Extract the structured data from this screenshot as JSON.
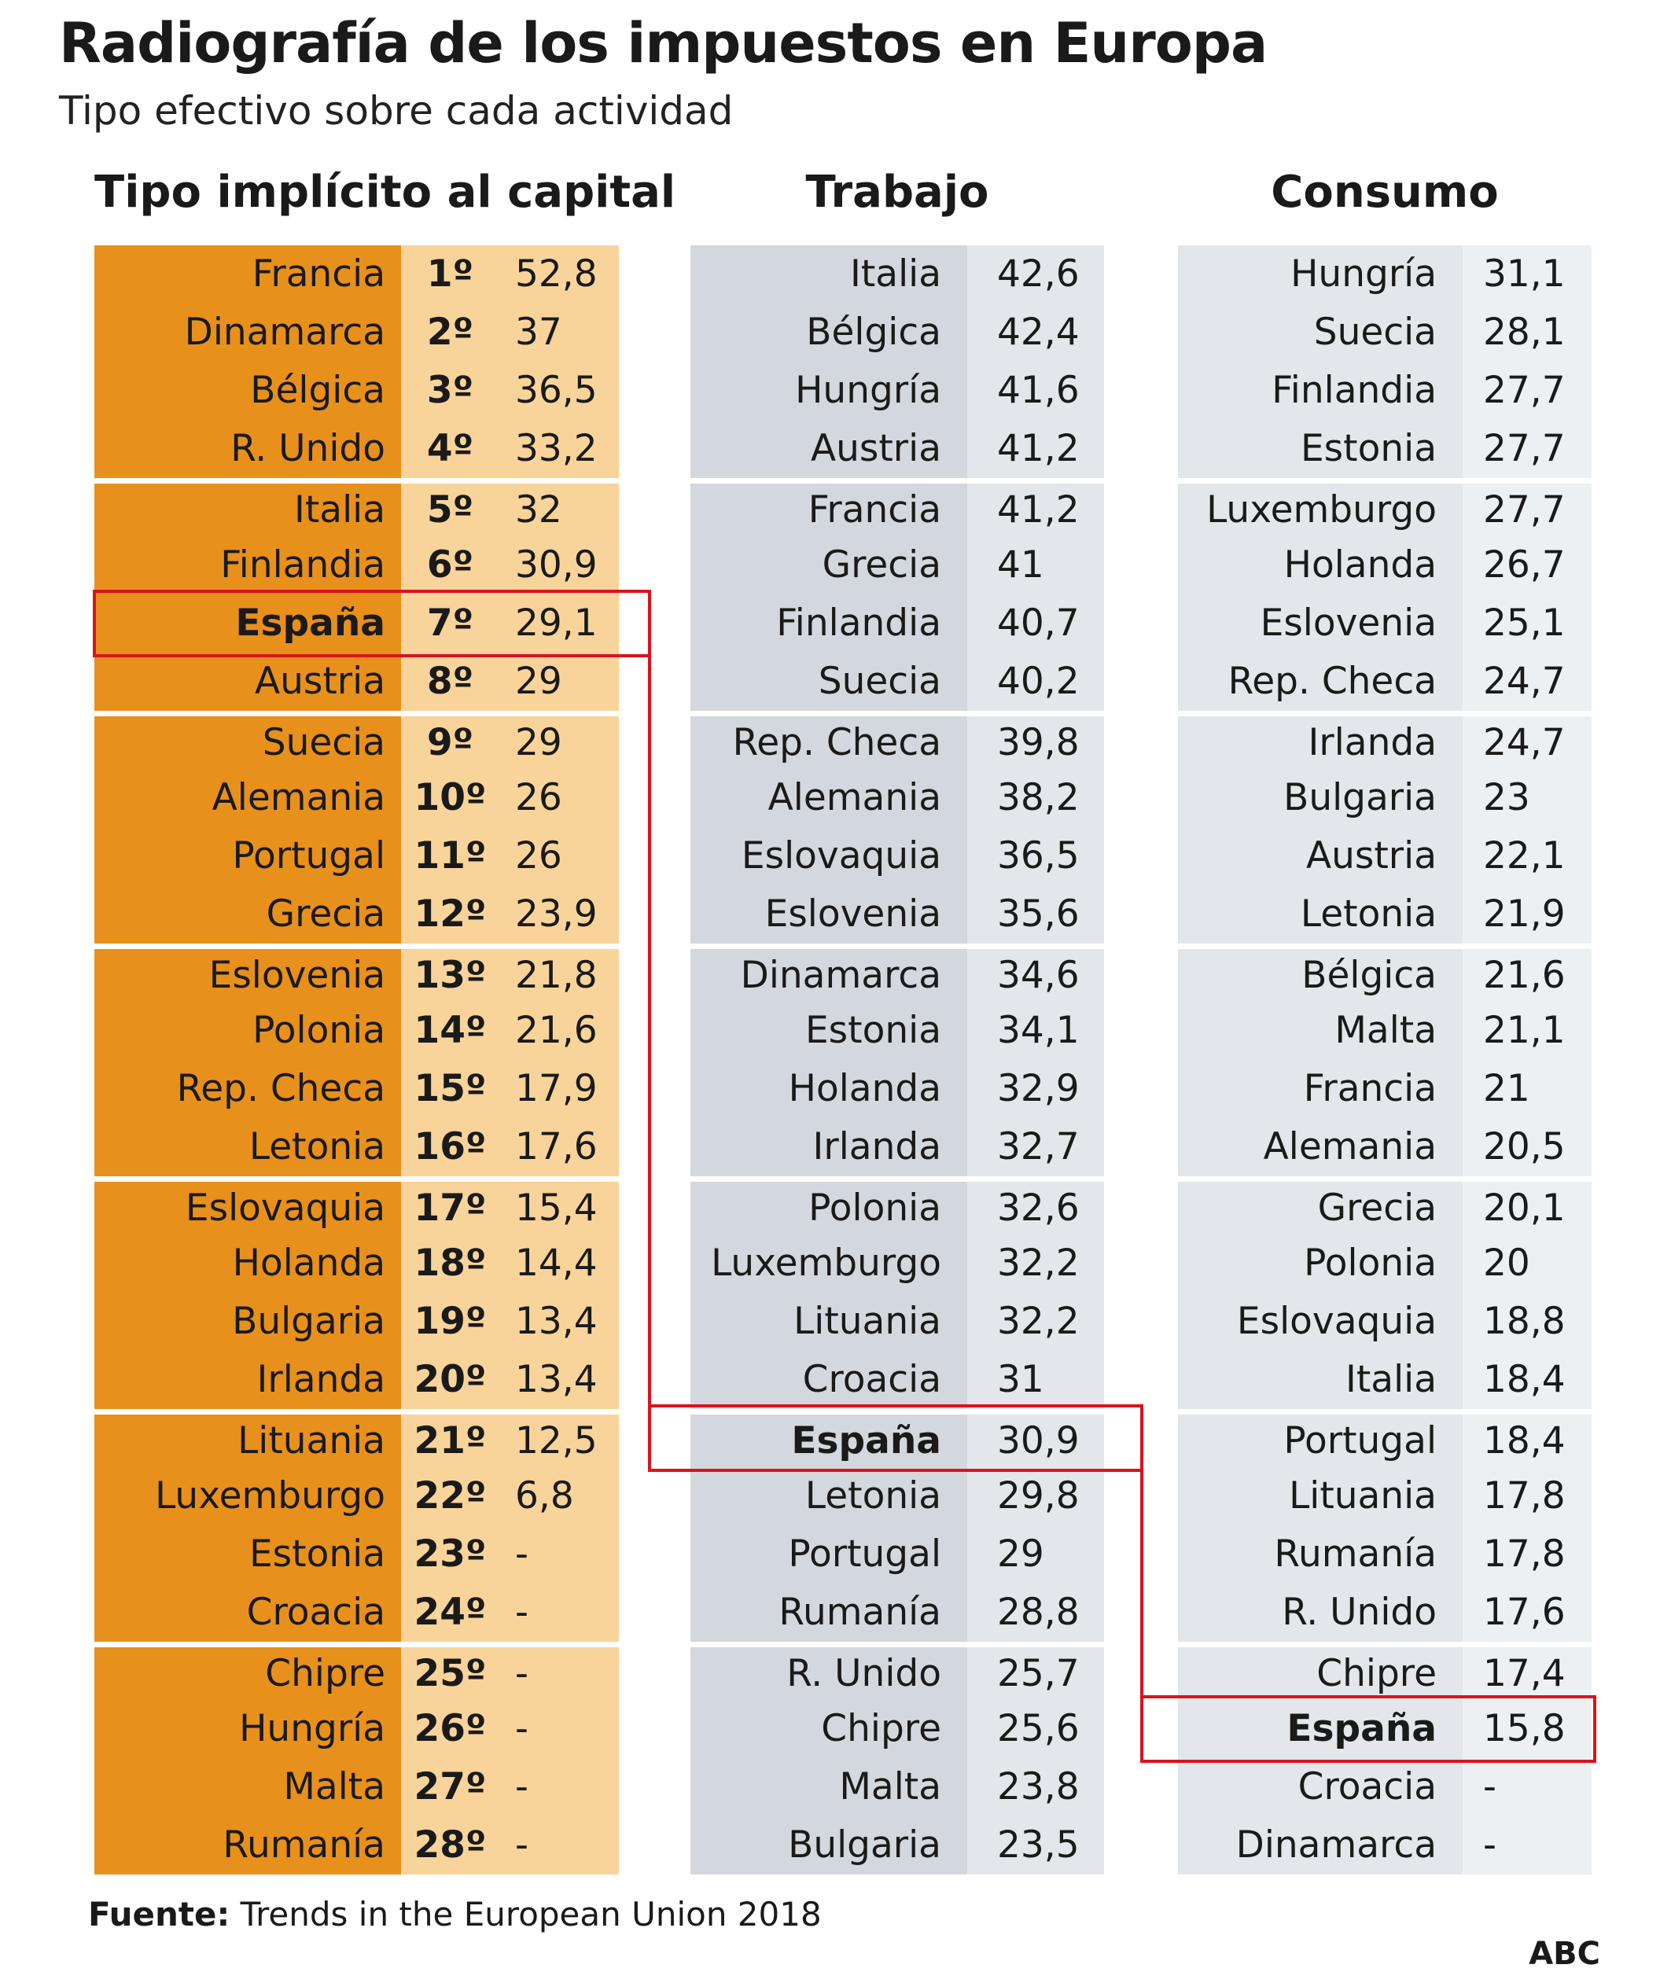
{
  "title": "Radiografía de los impuestos en Europa",
  "subtitle": "Tipo efectivo sobre cada actividad",
  "chart_data": [
    {
      "type": "table",
      "title": "Tipo implícito al capital",
      "highlight": "España",
      "rows": [
        {
          "country": "Francia",
          "rank": "1º",
          "value": "52,8"
        },
        {
          "country": "Dinamarca",
          "rank": "2º",
          "value": "37"
        },
        {
          "country": "Bélgica",
          "rank": "3º",
          "value": "36,5"
        },
        {
          "country": "R. Unido",
          "rank": "4º",
          "value": "33,2"
        },
        {
          "country": "Italia",
          "rank": "5º",
          "value": "32"
        },
        {
          "country": "Finlandia",
          "rank": "6º",
          "value": "30,9"
        },
        {
          "country": "España",
          "rank": "7º",
          "value": "29,1"
        },
        {
          "country": "Austria",
          "rank": "8º",
          "value": "29"
        },
        {
          "country": "Suecia",
          "rank": "9º",
          "value": "29"
        },
        {
          "country": "Alemania",
          "rank": "10º",
          "value": "26"
        },
        {
          "country": "Portugal",
          "rank": "11º",
          "value": "26"
        },
        {
          "country": "Grecia",
          "rank": "12º",
          "value": "23,9"
        },
        {
          "country": "Eslovenia",
          "rank": "13º",
          "value": "21,8"
        },
        {
          "country": "Polonia",
          "rank": "14º",
          "value": "21,6"
        },
        {
          "country": "Rep. Checa",
          "rank": "15º",
          "value": "17,9"
        },
        {
          "country": "Letonia",
          "rank": "16º",
          "value": "17,6"
        },
        {
          "country": "Eslovaquia",
          "rank": "17º",
          "value": "15,4"
        },
        {
          "country": "Holanda",
          "rank": "18º",
          "value": "14,4"
        },
        {
          "country": "Bulgaria",
          "rank": "19º",
          "value": "13,4"
        },
        {
          "country": "Irlanda",
          "rank": "20º",
          "value": "13,4"
        },
        {
          "country": "Lituania",
          "rank": "21º",
          "value": "12,5"
        },
        {
          "country": "Luxemburgo",
          "rank": "22º",
          "value": "6,8"
        },
        {
          "country": "Estonia",
          "rank": "23º",
          "value": "-"
        },
        {
          "country": "Croacia",
          "rank": "24º",
          "value": "-"
        },
        {
          "country": "Chipre",
          "rank": "25º",
          "value": "-"
        },
        {
          "country": "Hungría",
          "rank": "26º",
          "value": "-"
        },
        {
          "country": "Malta",
          "rank": "27º",
          "value": "-"
        },
        {
          "country": "Rumanía",
          "rank": "28º",
          "value": "-"
        }
      ]
    },
    {
      "type": "table",
      "title": "Trabajo",
      "highlight": "España",
      "rows": [
        {
          "country": "Italia",
          "value": "42,6"
        },
        {
          "country": "Bélgica",
          "value": "42,4"
        },
        {
          "country": "Hungría",
          "value": "41,6"
        },
        {
          "country": "Austria",
          "value": "41,2"
        },
        {
          "country": "Francia",
          "value": "41,2"
        },
        {
          "country": "Grecia",
          "value": "41"
        },
        {
          "country": "Finlandia",
          "value": "40,7"
        },
        {
          "country": "Suecia",
          "value": "40,2"
        },
        {
          "country": "Rep. Checa",
          "value": "39,8"
        },
        {
          "country": "Alemania",
          "value": "38,2"
        },
        {
          "country": "Eslovaquia",
          "value": "36,5"
        },
        {
          "country": "Eslovenia",
          "value": "35,6"
        },
        {
          "country": "Dinamarca",
          "value": "34,6"
        },
        {
          "country": "Estonia",
          "value": "34,1"
        },
        {
          "country": "Holanda",
          "value": "32,9"
        },
        {
          "country": "Irlanda",
          "value": "32,7"
        },
        {
          "country": "Polonia",
          "value": "32,6"
        },
        {
          "country": "Luxemburgo",
          "value": "32,2"
        },
        {
          "country": "Lituania",
          "value": "32,2"
        },
        {
          "country": "Croacia",
          "value": "31"
        },
        {
          "country": "España",
          "value": "30,9"
        },
        {
          "country": "Letonia",
          "value": "29,8"
        },
        {
          "country": "Portugal",
          "value": "29"
        },
        {
          "country": "Rumanía",
          "value": "28,8"
        },
        {
          "country": "R. Unido",
          "value": "25,7"
        },
        {
          "country": "Chipre",
          "value": "25,6"
        },
        {
          "country": "Malta",
          "value": "23,8"
        },
        {
          "country": "Bulgaria",
          "value": "23,5"
        }
      ]
    },
    {
      "type": "table",
      "title": "Consumo",
      "highlight": "España",
      "rows": [
        {
          "country": "Hungría",
          "value": "31,1"
        },
        {
          "country": "Suecia",
          "value": "28,1"
        },
        {
          "country": "Finlandia",
          "value": "27,7"
        },
        {
          "country": "Estonia",
          "value": "27,7"
        },
        {
          "country": "Luxemburgo",
          "value": "27,7"
        },
        {
          "country": "Holanda",
          "value": "26,7"
        },
        {
          "country": "Eslovenia",
          "value": "25,1"
        },
        {
          "country": "Rep. Checa",
          "value": "24,7"
        },
        {
          "country": "Irlanda",
          "value": "24,7"
        },
        {
          "country": "Bulgaria",
          "value": "23"
        },
        {
          "country": "Austria",
          "value": "22,1"
        },
        {
          "country": "Letonia",
          "value": "21,9"
        },
        {
          "country": "Bélgica",
          "value": "21,6"
        },
        {
          "country": "Malta",
          "value": "21,1"
        },
        {
          "country": "Francia",
          "value": "21"
        },
        {
          "country": "Alemania",
          "value": "20,5"
        },
        {
          "country": "Grecia",
          "value": "20,1"
        },
        {
          "country": "Polonia",
          "value": "20"
        },
        {
          "country": "Eslovaquia",
          "value": "18,8"
        },
        {
          "country": "Italia",
          "value": "18,4"
        },
        {
          "country": "Portugal",
          "value": "18,4"
        },
        {
          "country": "Lituania",
          "value": "17,8"
        },
        {
          "country": "Rumanía",
          "value": "17,8"
        },
        {
          "country": "R. Unido",
          "value": "17,6"
        },
        {
          "country": "Chipre",
          "value": "17,4"
        },
        {
          "country": "España",
          "value": "15,8"
        },
        {
          "country": "Croacia",
          "value": "-"
        },
        {
          "country": "Dinamarca",
          "value": "-"
        }
      ]
    }
  ],
  "source": {
    "label": "Fuente:",
    "text": " Trends in the European Union 2018"
  },
  "brand": "ABC",
  "colors": {
    "capital_name": "#e8901c",
    "capital_value": "#f8d49a",
    "trabajo_name": "#d3d8de",
    "trabajo_value": "#e3e7eb",
    "consumo_name": "#e3e7eb",
    "consumo_value": "#edf0f3",
    "highlight": "#d8141e"
  }
}
